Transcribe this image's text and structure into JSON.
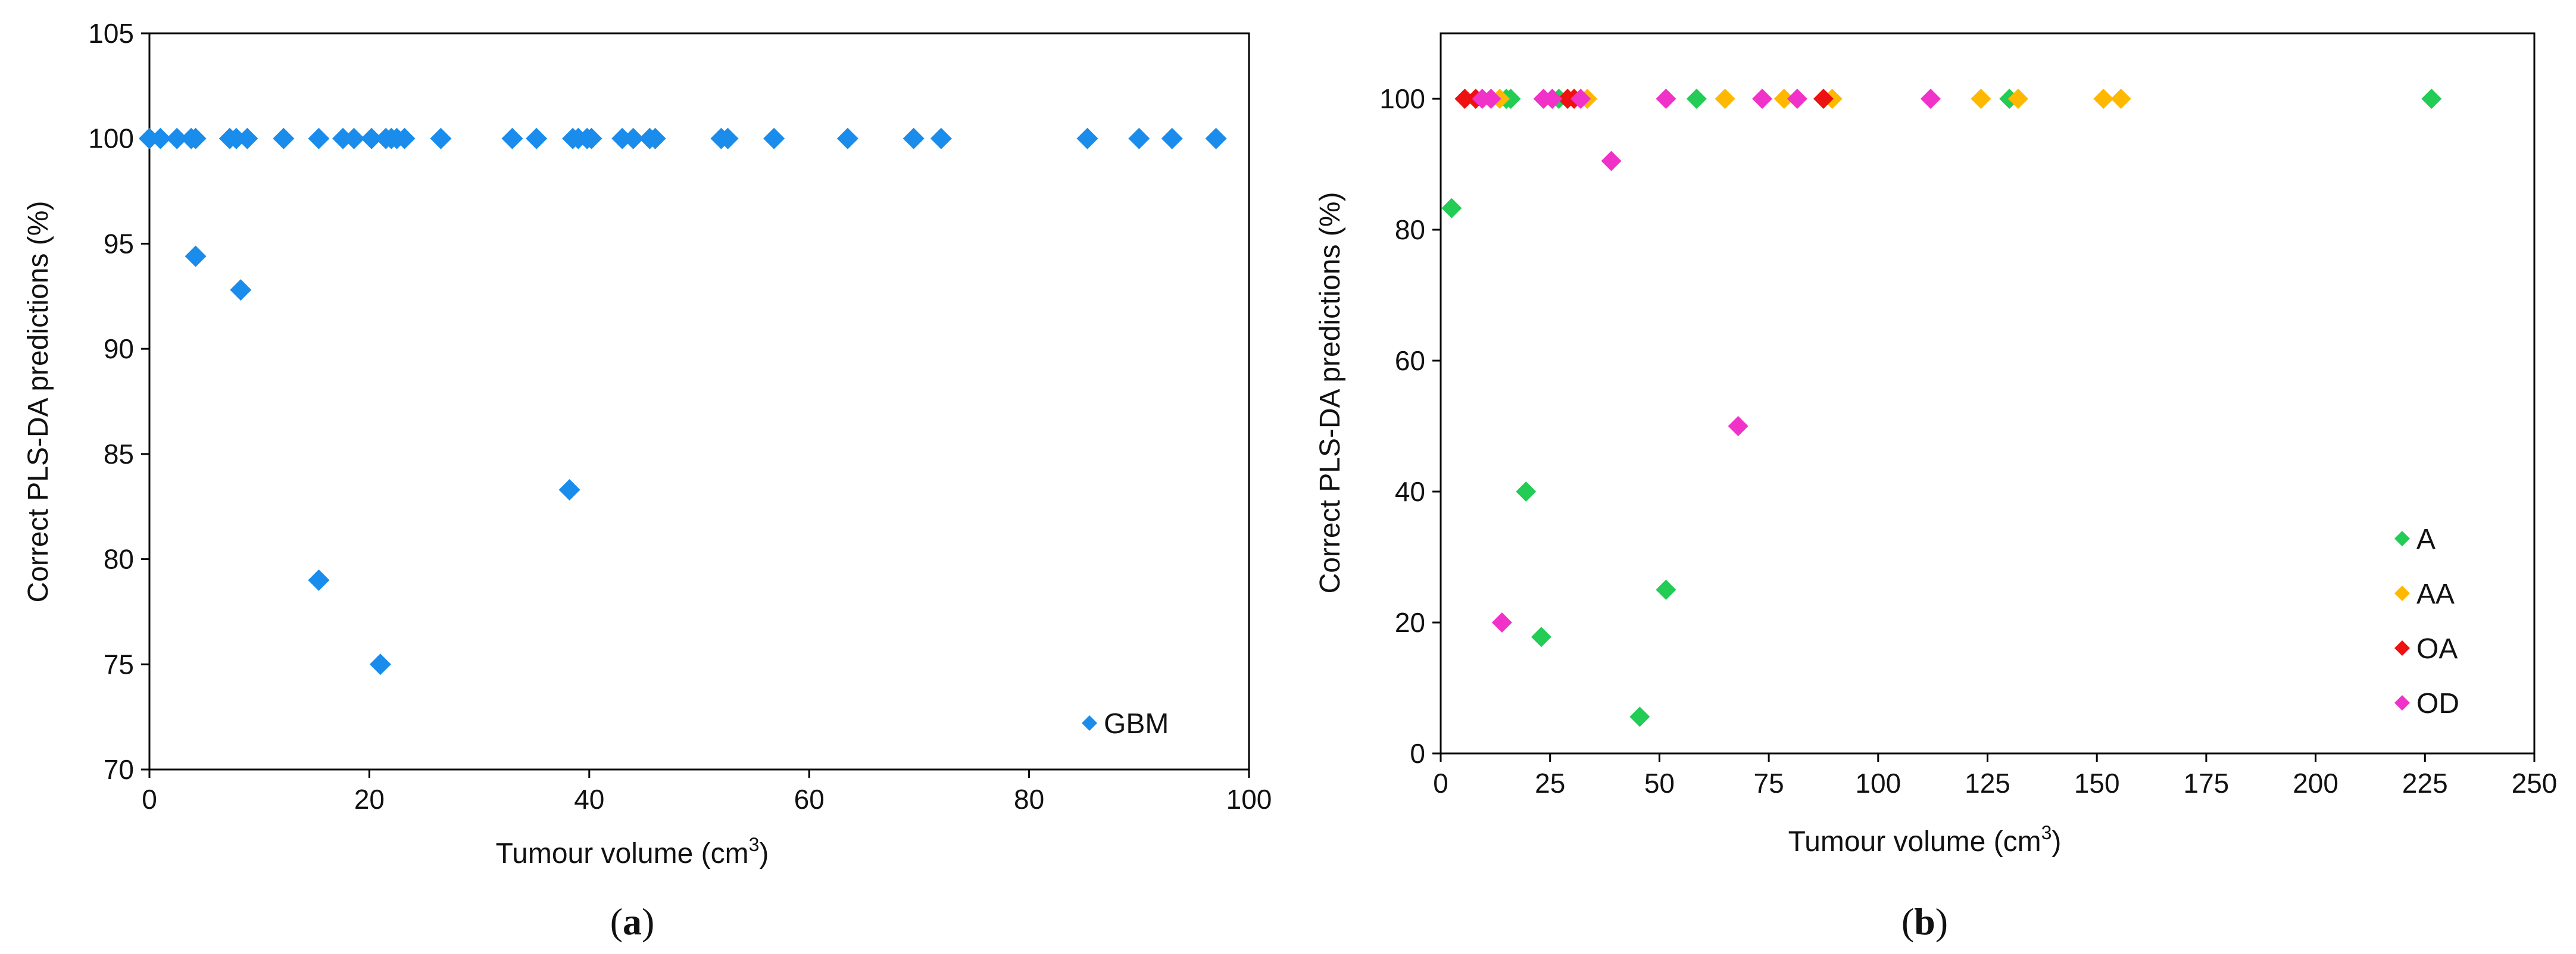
{
  "chart_data": [
    {
      "type": "scatter",
      "panel_label": "a",
      "xlabel": "Tumour volume (cm",
      "xlabel_sup": "3",
      "xlabel_end": ")",
      "ylabel": "Correct PLS-DA predictions (%)",
      "xlim": [
        0,
        100
      ],
      "ylim": [
        70,
        105
      ],
      "xticks": [
        0,
        20,
        40,
        60,
        80,
        100
      ],
      "yticks": [
        70,
        75,
        80,
        85,
        90,
        95,
        100,
        105
      ],
      "grid": false,
      "legend_position": "bottom-right",
      "series": [
        {
          "name": "GBM",
          "color": "#1a8cec",
          "marker": "diamond",
          "points": [
            [
              0,
              100
            ],
            [
              1,
              100
            ],
            [
              2.5,
              100
            ],
            [
              3.8,
              100
            ],
            [
              4.2,
              100
            ],
            [
              7.3,
              100
            ],
            [
              7.9,
              100
            ],
            [
              8.9,
              100
            ],
            [
              12.2,
              100
            ],
            [
              15.4,
              100
            ],
            [
              17.6,
              100
            ],
            [
              18.6,
              100
            ],
            [
              20.2,
              100
            ],
            [
              21.5,
              100
            ],
            [
              22,
              100
            ],
            [
              22.5,
              100
            ],
            [
              23.2,
              100
            ],
            [
              26.5,
              100
            ],
            [
              33,
              100
            ],
            [
              35.2,
              100
            ],
            [
              38.5,
              100
            ],
            [
              39,
              100
            ],
            [
              39.8,
              100
            ],
            [
              40.2,
              100
            ],
            [
              43,
              100
            ],
            [
              44,
              100
            ],
            [
              45.5,
              100
            ],
            [
              46,
              100
            ],
            [
              52,
              100
            ],
            [
              52.6,
              100
            ],
            [
              56.8,
              100
            ],
            [
              63.5,
              100
            ],
            [
              69.5,
              100
            ],
            [
              72,
              100
            ],
            [
              85.3,
              100
            ],
            [
              90,
              100
            ],
            [
              93,
              100
            ],
            [
              97,
              100
            ],
            [
              4.2,
              94.4
            ],
            [
              8.3,
              92.8
            ],
            [
              15.4,
              79
            ],
            [
              21,
              75
            ],
            [
              38.2,
              83.3
            ]
          ]
        }
      ]
    },
    {
      "type": "scatter",
      "panel_label": "b",
      "xlabel": "Tumour volume (cm",
      "xlabel_sup": "3",
      "xlabel_end": ")",
      "ylabel": "Correct PLS-DA predictions (%)",
      "xlim": [
        0,
        250
      ],
      "ylim": [
        0,
        110
      ],
      "xticks": [
        0,
        25,
        50,
        75,
        100,
        125,
        150,
        175,
        200,
        225,
        250
      ],
      "yticks": [
        0,
        20,
        40,
        60,
        80,
        100
      ],
      "grid": false,
      "legend_position": "bottom-right",
      "series": [
        {
          "name": "A",
          "color": "#22cc55",
          "marker": "diamond",
          "points": [
            [
              2.5,
              83.3
            ],
            [
              15,
              100
            ],
            [
              16,
              100
            ],
            [
              19.5,
              40
            ],
            [
              23,
              17.8
            ],
            [
              27,
              100
            ],
            [
              45.5,
              5.6
            ],
            [
              51.5,
              25
            ],
            [
              58.5,
              100
            ],
            [
              130,
              100
            ],
            [
              226.5,
              100
            ]
          ]
        },
        {
          "name": "AA",
          "color": "#ffb800",
          "marker": "diamond",
          "points": [
            [
              13.5,
              100
            ],
            [
              33.5,
              100
            ],
            [
              65,
              100
            ],
            [
              78.5,
              100
            ],
            [
              89.5,
              100
            ],
            [
              123.5,
              100
            ],
            [
              132,
              100
            ],
            [
              151.5,
              100
            ],
            [
              155.5,
              100
            ]
          ]
        },
        {
          "name": "OA",
          "color": "#ee1111",
          "marker": "diamond",
          "points": [
            [
              5.5,
              100
            ],
            [
              8,
              100
            ],
            [
              29,
              100
            ],
            [
              30.5,
              100
            ],
            [
              87.5,
              100
            ]
          ]
        },
        {
          "name": "OD",
          "color": "#f032c8",
          "marker": "diamond",
          "points": [
            [
              9.5,
              100
            ],
            [
              11.5,
              100
            ],
            [
              14,
              20
            ],
            [
              23.5,
              100
            ],
            [
              25.5,
              100
            ],
            [
              32,
              100
            ],
            [
              39,
              90.5
            ],
            [
              51.5,
              100
            ],
            [
              68,
              50
            ],
            [
              73.5,
              100
            ],
            [
              81.5,
              100
            ],
            [
              112,
              100
            ]
          ]
        }
      ]
    }
  ]
}
